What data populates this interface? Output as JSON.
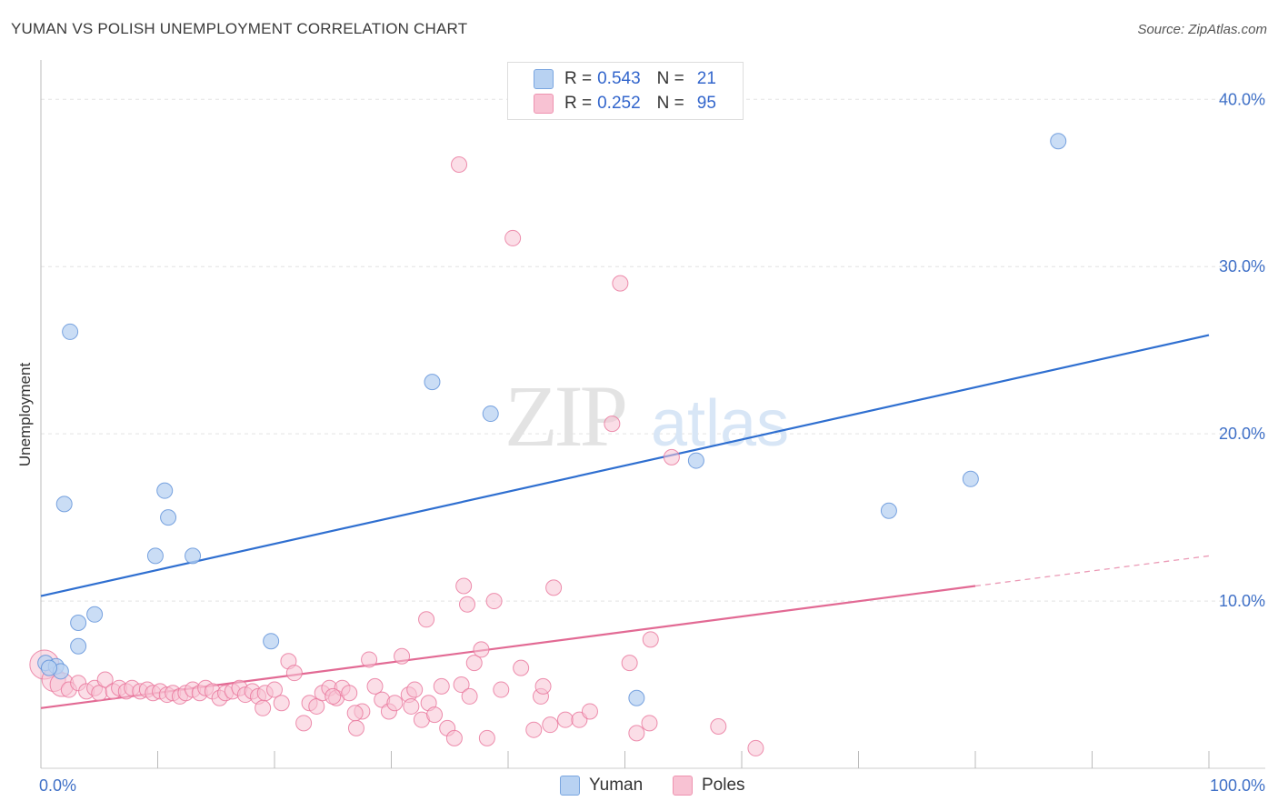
{
  "header": {
    "title": "YUMAN VS POLISH UNEMPLOYMENT CORRELATION CHART",
    "source": "Source: ZipAtlas.com"
  },
  "watermark": {
    "zip": "ZIP",
    "atlas": "atlas"
  },
  "legend": {
    "rows": [
      {
        "r_label": "R =",
        "r_value": "0.543",
        "n_label": "N =",
        "n_value": "21",
        "color": "#a9c8f0"
      },
      {
        "r_label": "R =",
        "r_value": "0.252",
        "n_label": "N =",
        "n_value": "95",
        "color": "#f6b8cc"
      }
    ]
  },
  "bottom_legend": {
    "yuman": "Yuman",
    "poles": "Poles"
  },
  "chart_data": {
    "type": "scatter",
    "title": "YUMAN VS POLISH UNEMPLOYMENT CORRELATION CHART",
    "xlabel": "",
    "ylabel": "Unemployment",
    "xlim": [
      0,
      100
    ],
    "ylim": [
      0,
      41.7
    ],
    "x_tick_labels": [
      "0.0%",
      "100.0%"
    ],
    "y_ticks": [
      10,
      20,
      30,
      40
    ],
    "y_tick_labels": [
      "10.0%",
      "20.0%",
      "30.0%",
      "40.0%"
    ],
    "grid": true,
    "legend_position": "top-center",
    "series": [
      {
        "name": "Yuman",
        "color": "#5b8fd8",
        "fill": "#b8d2f2",
        "trend": {
          "x0": 0,
          "y0": 10.3,
          "x1": 100,
          "y1": 25.9
        },
        "points": [
          {
            "x": 0.4,
            "y": 6.3
          },
          {
            "x": 1.3,
            "y": 6.1
          },
          {
            "x": 1.7,
            "y": 5.8
          },
          {
            "x": 2.5,
            "y": 26.1
          },
          {
            "x": 2.0,
            "y": 15.8
          },
          {
            "x": 3.2,
            "y": 8.7
          },
          {
            "x": 3.2,
            "y": 7.3
          },
          {
            "x": 4.6,
            "y": 9.2
          },
          {
            "x": 9.8,
            "y": 12.7
          },
          {
            "x": 10.6,
            "y": 16.6
          },
          {
            "x": 10.9,
            "y": 15.0
          },
          {
            "x": 13.0,
            "y": 12.7
          },
          {
            "x": 19.7,
            "y": 7.6
          },
          {
            "x": 33.5,
            "y": 23.1
          },
          {
            "x": 38.5,
            "y": 21.2
          },
          {
            "x": 51.0,
            "y": 4.2
          },
          {
            "x": 56.1,
            "y": 18.4
          },
          {
            "x": 72.6,
            "y": 15.4
          },
          {
            "x": 79.6,
            "y": 17.3
          },
          {
            "x": 87.1,
            "y": 37.5
          },
          {
            "x": 0.7,
            "y": 6.0
          }
        ]
      },
      {
        "name": "Poles",
        "color": "#e8739a",
        "fill": "#f8c2d3",
        "trend": {
          "x0": 0,
          "y0": 3.6,
          "x1": 80,
          "y1": 10.9,
          "dash_to_x": 100,
          "dash_to_y": 12.7
        },
        "points": [
          {
            "x": 0.3,
            "y": 6.2,
            "big": 1
          },
          {
            "x": 1.1,
            "y": 5.3,
            "big": 1
          },
          {
            "x": 1.8,
            "y": 5.0,
            "big": 1
          },
          {
            "x": 2.4,
            "y": 4.7
          },
          {
            "x": 3.2,
            "y": 5.1
          },
          {
            "x": 3.9,
            "y": 4.6
          },
          {
            "x": 4.6,
            "y": 4.8
          },
          {
            "x": 5.0,
            "y": 4.5
          },
          {
            "x": 5.5,
            "y": 5.3
          },
          {
            "x": 6.2,
            "y": 4.6
          },
          {
            "x": 6.7,
            "y": 4.8
          },
          {
            "x": 7.3,
            "y": 4.6
          },
          {
            "x": 7.8,
            "y": 4.8
          },
          {
            "x": 8.5,
            "y": 4.6
          },
          {
            "x": 9.1,
            "y": 4.7
          },
          {
            "x": 9.6,
            "y": 4.5
          },
          {
            "x": 10.2,
            "y": 4.6
          },
          {
            "x": 10.8,
            "y": 4.4
          },
          {
            "x": 11.3,
            "y": 4.5
          },
          {
            "x": 11.9,
            "y": 4.3
          },
          {
            "x": 12.4,
            "y": 4.5
          },
          {
            "x": 13.0,
            "y": 4.7
          },
          {
            "x": 13.6,
            "y": 4.5
          },
          {
            "x": 14.1,
            "y": 4.8
          },
          {
            "x": 14.7,
            "y": 4.6
          },
          {
            "x": 15.3,
            "y": 4.2
          },
          {
            "x": 15.8,
            "y": 4.5
          },
          {
            "x": 16.4,
            "y": 4.6
          },
          {
            "x": 17.0,
            "y": 4.8
          },
          {
            "x": 17.5,
            "y": 4.4
          },
          {
            "x": 18.1,
            "y": 4.6
          },
          {
            "x": 18.6,
            "y": 4.3
          },
          {
            "x": 19.2,
            "y": 4.5
          },
          {
            "x": 20.0,
            "y": 4.7
          },
          {
            "x": 20.6,
            "y": 3.9
          },
          {
            "x": 21.2,
            "y": 6.4
          },
          {
            "x": 21.7,
            "y": 5.7
          },
          {
            "x": 19.0,
            "y": 3.6
          },
          {
            "x": 22.5,
            "y": 2.7
          },
          {
            "x": 23.0,
            "y": 3.9
          },
          {
            "x": 23.6,
            "y": 3.7
          },
          {
            "x": 24.1,
            "y": 4.5
          },
          {
            "x": 24.7,
            "y": 4.8
          },
          {
            "x": 25.3,
            "y": 4.2
          },
          {
            "x": 25.8,
            "y": 4.8
          },
          {
            "x": 26.4,
            "y": 4.5
          },
          {
            "x": 27.0,
            "y": 2.4
          },
          {
            "x": 27.5,
            "y": 3.4
          },
          {
            "x": 28.1,
            "y": 6.5
          },
          {
            "x": 28.6,
            "y": 4.9
          },
          {
            "x": 29.2,
            "y": 4.1
          },
          {
            "x": 29.8,
            "y": 3.4
          },
          {
            "x": 30.3,
            "y": 3.9
          },
          {
            "x": 30.9,
            "y": 6.7
          },
          {
            "x": 31.5,
            "y": 4.4
          },
          {
            "x": 32.0,
            "y": 4.7
          },
          {
            "x": 32.6,
            "y": 2.9
          },
          {
            "x": 33.2,
            "y": 3.9
          },
          {
            "x": 33.7,
            "y": 3.2
          },
          {
            "x": 34.3,
            "y": 4.9
          },
          {
            "x": 33.0,
            "y": 8.9
          },
          {
            "x": 34.8,
            "y": 2.4
          },
          {
            "x": 35.4,
            "y": 1.8
          },
          {
            "x": 36.0,
            "y": 5.0
          },
          {
            "x": 36.5,
            "y": 9.8
          },
          {
            "x": 36.2,
            "y": 10.9
          },
          {
            "x": 35.8,
            "y": 36.1
          },
          {
            "x": 37.1,
            "y": 6.3
          },
          {
            "x": 37.7,
            "y": 7.1
          },
          {
            "x": 38.2,
            "y": 1.8
          },
          {
            "x": 38.8,
            "y": 10.0
          },
          {
            "x": 39.4,
            "y": 4.7
          },
          {
            "x": 40.4,
            "y": 31.7
          },
          {
            "x": 41.1,
            "y": 6.0
          },
          {
            "x": 42.2,
            "y": 2.3
          },
          {
            "x": 42.8,
            "y": 4.3
          },
          {
            "x": 43.6,
            "y": 2.6
          },
          {
            "x": 43.9,
            "y": 10.8
          },
          {
            "x": 44.9,
            "y": 2.9
          },
          {
            "x": 46.1,
            "y": 2.9
          },
          {
            "x": 47.0,
            "y": 3.4
          },
          {
            "x": 48.9,
            "y": 20.6
          },
          {
            "x": 49.6,
            "y": 29.0
          },
          {
            "x": 50.4,
            "y": 6.3
          },
          {
            "x": 51.0,
            "y": 2.1
          },
          {
            "x": 52.1,
            "y": 2.7
          },
          {
            "x": 52.2,
            "y": 7.7
          },
          {
            "x": 54.0,
            "y": 18.6
          },
          {
            "x": 58.0,
            "y": 2.5
          },
          {
            "x": 61.2,
            "y": 1.2
          },
          {
            "x": 36.7,
            "y": 4.3
          },
          {
            "x": 31.7,
            "y": 3.7
          },
          {
            "x": 26.9,
            "y": 3.3
          },
          {
            "x": 25.0,
            "y": 4.3
          },
          {
            "x": 43.0,
            "y": 4.9
          }
        ]
      }
    ]
  }
}
